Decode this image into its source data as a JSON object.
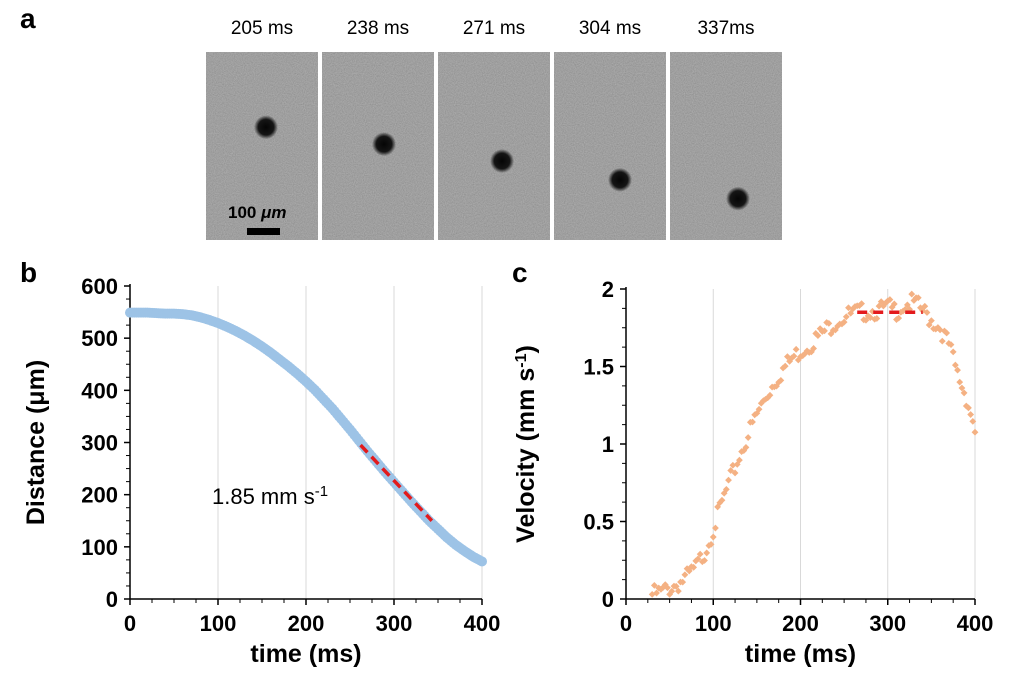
{
  "panel_a": {
    "letter": "a",
    "frames": [
      {
        "label": "205 ms",
        "particle_position": 0.4
      },
      {
        "label": "238 ms",
        "particle_position": 0.49
      },
      {
        "label": "271 ms",
        "particle_position": 0.58
      },
      {
        "label": "304 ms",
        "particle_position": 0.68
      },
      {
        "label": "337ms",
        "particle_position": 0.78
      }
    ],
    "scale_bar": {
      "value": "100",
      "unit": "μm"
    }
  },
  "colors": {
    "series_b": "#9dc3e6",
    "series_c": "#f4b183",
    "fit_line": "#e31a1c",
    "grid": "#d9d9d9",
    "frame_bg": "#b8b8b8"
  },
  "chart_data": [
    {
      "panel": "b",
      "type": "scatter",
      "xlabel": "time (ms)",
      "ylabel": "Distance (μm)",
      "xlim": [
        0,
        400
      ],
      "ylim": [
        0,
        600
      ],
      "xticks": [
        0,
        100,
        200,
        300,
        400
      ],
      "yticks": [
        0,
        100,
        200,
        300,
        400,
        500,
        600
      ],
      "grid": "vertical",
      "annotation": {
        "prefix": "1.85 mm s",
        "sup": "-1"
      },
      "fit_line": {
        "x": [
          262,
          343
        ],
        "y": [
          295,
          150
        ]
      },
      "series": [
        {
          "x": [
            0,
            10,
            20,
            30,
            40,
            50,
            60,
            70,
            80,
            90,
            100,
            110,
            120,
            130,
            140,
            150,
            160,
            170,
            180,
            190,
            200,
            210,
            220,
            230,
            240,
            250,
            260,
            270,
            280,
            290,
            300,
            310,
            320,
            330,
            340,
            350,
            360,
            370,
            380,
            390,
            400
          ],
          "y": [
            549,
            549,
            549,
            548,
            547,
            547,
            546,
            544,
            540,
            535,
            529,
            522,
            514,
            505,
            495,
            484,
            472,
            459,
            446,
            432,
            417,
            401,
            383,
            365,
            345,
            325,
            304,
            283,
            263,
            243,
            224,
            205,
            186,
            168,
            150,
            134,
            118,
            104,
            92,
            81,
            72
          ]
        }
      ]
    },
    {
      "panel": "c",
      "type": "scatter",
      "xlabel": "time (ms)",
      "ylabel": "Velocity (mm s",
      "ylabel_sup": "-1",
      "ylabel_end": ")",
      "xlim": [
        0,
        400
      ],
      "ylim": [
        0,
        2
      ],
      "xticks": [
        0,
        100,
        200,
        300,
        400
      ],
      "yticks": [
        0,
        0.5,
        1,
        1.5,
        2
      ],
      "grid": "vertical",
      "fit_line": {
        "x": [
          265,
          340
        ],
        "y": [
          1.85,
          1.85
        ]
      },
      "series": [
        {
          "x": [
            30,
            40,
            50,
            60,
            70,
            80,
            90,
            100,
            110,
            120,
            130,
            140,
            150,
            160,
            170,
            180,
            190,
            200,
            210,
            220,
            230,
            240,
            250,
            260,
            270,
            280,
            290,
            300,
            310,
            320,
            330,
            340,
            350,
            360,
            370,
            380,
            390,
            400
          ],
          "y": [
            0.03,
            0.04,
            0.07,
            0.1,
            0.14,
            0.2,
            0.3,
            0.45,
            0.62,
            0.77,
            0.92,
            1.06,
            1.19,
            1.3,
            1.4,
            1.48,
            1.55,
            1.6,
            1.64,
            1.69,
            1.74,
            1.79,
            1.82,
            1.84,
            1.85,
            1.86,
            1.86,
            1.88,
            1.86,
            1.9,
            1.91,
            1.86,
            1.8,
            1.75,
            1.64,
            1.45,
            1.3,
            1.1
          ]
        }
      ]
    }
  ]
}
